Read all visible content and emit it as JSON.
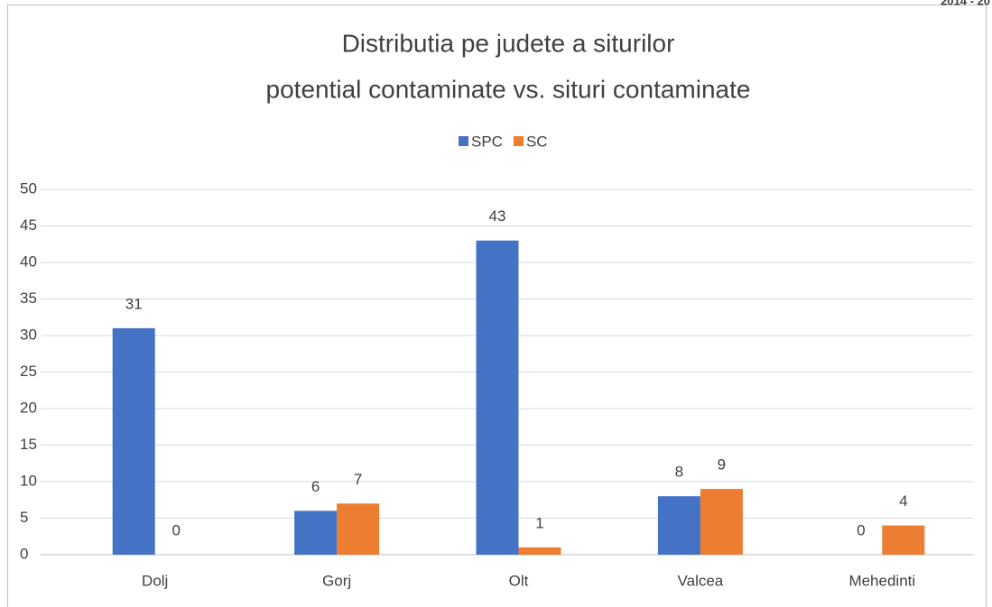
{
  "page_header": "2014 - 20",
  "chart_data": {
    "type": "bar",
    "title": [
      "Distributia pe judete a siturilor",
      "potential contaminate  vs. situri contaminate"
    ],
    "categories": [
      "Dolj",
      "Gorj",
      "Olt",
      "Valcea",
      "Mehedinti"
    ],
    "series": [
      {
        "name": "SPC",
        "color": "#4472c4",
        "values": [
          31,
          6,
          43,
          8,
          0
        ]
      },
      {
        "name": "SC",
        "color": "#ed7d31",
        "values": [
          0,
          7,
          1,
          9,
          4
        ]
      }
    ],
    "ylim": [
      0,
      50
    ],
    "yticks": [
      0,
      5,
      10,
      15,
      20,
      25,
      30,
      35,
      40,
      45,
      50
    ],
    "grid": true,
    "legend": "top"
  }
}
